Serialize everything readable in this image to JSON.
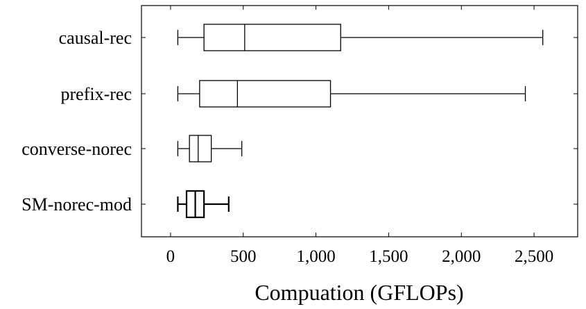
{
  "chart_data": {
    "type": "boxplot",
    "orientation": "horizontal",
    "title": "",
    "xlabel": "Compuation (GFLOPs)",
    "ylabel": "",
    "xlim": [
      -200,
      2800
    ],
    "xticks": [
      0,
      500,
      1000,
      1500,
      2000,
      2500
    ],
    "xtick_labels": [
      "0",
      "500",
      "1,000",
      "1,500",
      "2,000",
      "2,500"
    ],
    "grid": false,
    "categories": [
      "causal-rec",
      "prefix-rec",
      "converse-norec",
      "SM-norec-mod"
    ],
    "boxes": [
      {
        "label": "causal-rec",
        "whislo": 50,
        "q1": 230,
        "med": 510,
        "q3": 1170,
        "whishi": 2560,
        "bold": false
      },
      {
        "label": "prefix-rec",
        "whislo": 50,
        "q1": 200,
        "med": 460,
        "q3": 1100,
        "whishi": 2440,
        "bold": false
      },
      {
        "label": "converse-norec",
        "whislo": 50,
        "q1": 130,
        "med": 190,
        "q3": 280,
        "whishi": 490,
        "bold": false
      },
      {
        "label": "SM-norec-mod",
        "whislo": 50,
        "q1": 110,
        "med": 170,
        "q3": 230,
        "whishi": 400,
        "bold": true
      }
    ]
  }
}
